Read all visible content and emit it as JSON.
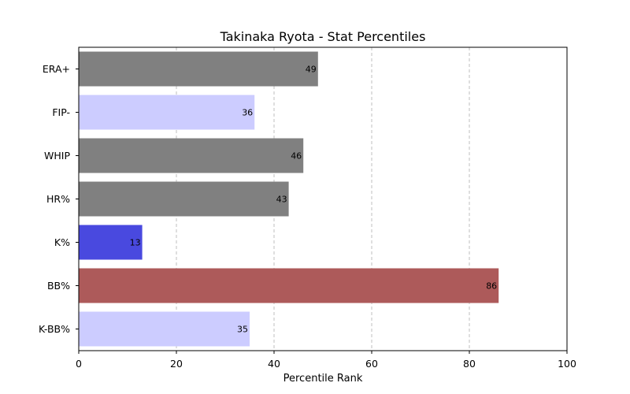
{
  "chart_data": {
    "type": "bar",
    "orientation": "horizontal",
    "title": "Takinaka Ryota - Stat Percentiles",
    "xlabel": "Percentile Rank",
    "ylabel": "",
    "xlim": [
      0,
      100
    ],
    "xticks": [
      "0",
      "20",
      "40",
      "60",
      "80",
      "100"
    ],
    "grid": "vertical dashed",
    "categories": [
      "ERA+",
      "FIP-",
      "WHIP",
      "HR%",
      "K%",
      "BB%",
      "K-BB%"
    ],
    "values": [
      49,
      36,
      46,
      43,
      13,
      86,
      35
    ],
    "colors": [
      "#808080",
      "#ccccff",
      "#808080",
      "#808080",
      "#4949df",
      "#ad5a5a",
      "#ccccff"
    ]
  }
}
